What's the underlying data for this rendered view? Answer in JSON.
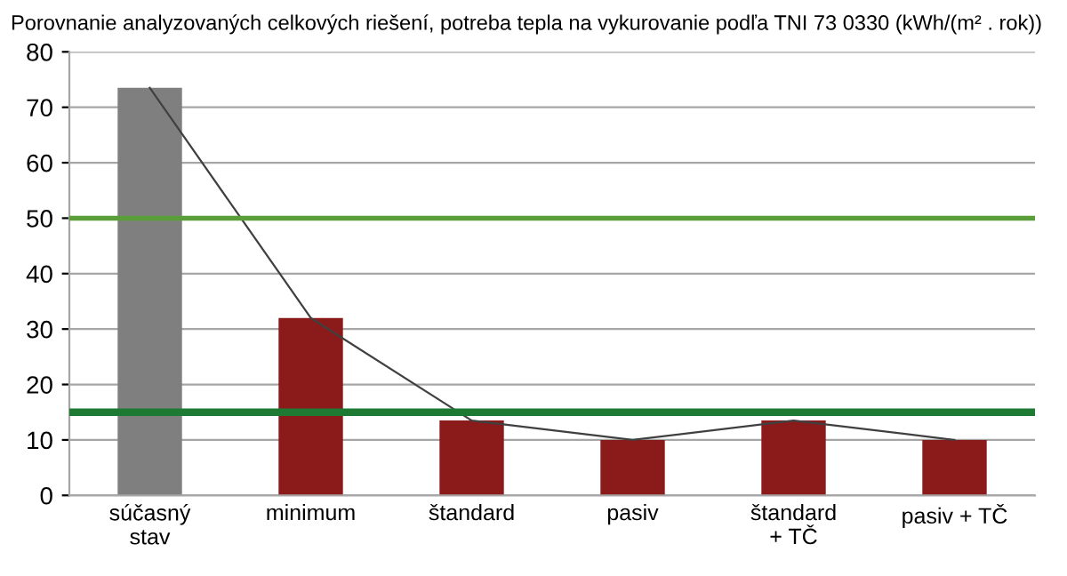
{
  "chart_data": {
    "type": "bar",
    "title": "Porovnanie analyzovaných celkových riešení, potreba tepla na vykurovanie podľa TNI 73 0330 (kWh/(m² . rok))",
    "categories": [
      "súčasný\nstav",
      "minimum",
      "štandard",
      "pasiv",
      "štandard\n+ TČ",
      "pasiv + TČ"
    ],
    "series": [
      {
        "colors": [
          "#7f7f7f",
          "#8b1a1a",
          "#8b1a1a",
          "#8b1a1a",
          "#8b1a1a",
          "#8b1a1a"
        ],
        "values": [
          73.5,
          32,
          13.5,
          10,
          13.5,
          10
        ]
      },
      {
        "type": "line",
        "color": "#404040",
        "values": [
          73.5,
          32,
          13.5,
          10,
          13.5,
          10
        ]
      }
    ],
    "ylim": [
      0,
      80
    ],
    "yticks": [
      0,
      10,
      20,
      30,
      40,
      50,
      60,
      70,
      80
    ],
    "grid": "y",
    "legend": false,
    "marker": "none",
    "ref_lines": [
      {
        "axis": "y",
        "value": 50,
        "color": "#5a9e3a"
      },
      {
        "axis": "y",
        "value": 15,
        "color": "#1e7a32"
      }
    ]
  }
}
